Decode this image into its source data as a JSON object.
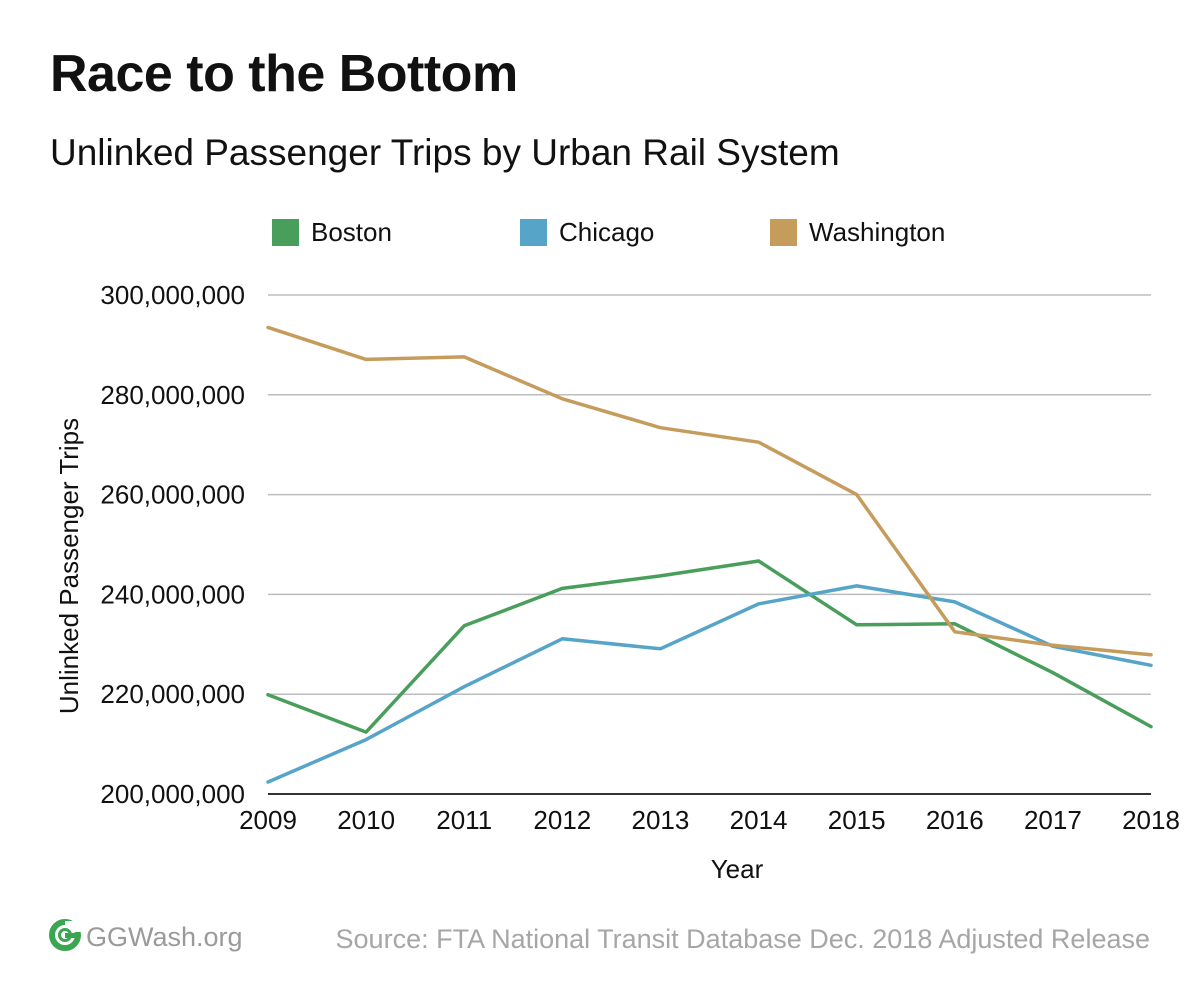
{
  "chart_data": {
    "type": "line",
    "title": "Race to the Bottom",
    "subtitle": "Unlinked Passenger Trips by Urban Rail System",
    "xlabel": "Year",
    "ylabel": "Unlinked Passenger Trips",
    "x": [
      "2009",
      "2010",
      "2011",
      "2012",
      "2013",
      "2014",
      "2015",
      "2016",
      "2017",
      "2018"
    ],
    "ylim": [
      200000000,
      300000000
    ],
    "yticks": [
      200000000,
      220000000,
      240000000,
      260000000,
      280000000,
      300000000
    ],
    "ytick_labels": [
      "200,000,000",
      "220,000,000",
      "240,000,000",
      "260,000,000",
      "280,000,000",
      "300,000,000"
    ],
    "grid": true,
    "legend_position": "top",
    "series": [
      {
        "name": "Boston",
        "color": "#4a9e5c",
        "values": [
          219900000,
          212400000,
          233700000,
          241200000,
          243700000,
          246700000,
          233900000,
          234100000,
          224300000,
          213500000
        ]
      },
      {
        "name": "Chicago",
        "color": "#56a5c8",
        "values": [
          202400000,
          210900000,
          221500000,
          231100000,
          229100000,
          238100000,
          241700000,
          238500000,
          229600000,
          225800000
        ]
      },
      {
        "name": "Washington",
        "color": "#c69c5c",
        "values": [
          293500000,
          287100000,
          287600000,
          279200000,
          273400000,
          270500000,
          260000000,
          232500000,
          229800000,
          227900000
        ]
      }
    ]
  },
  "footer": {
    "logo_text": "GGWash.org",
    "logo_icon": "ggwash-logo-icon",
    "logo_color": "#3aa651",
    "source": "Source: FTA National Transit Database Dec. 2018 Adjusted Release"
  }
}
